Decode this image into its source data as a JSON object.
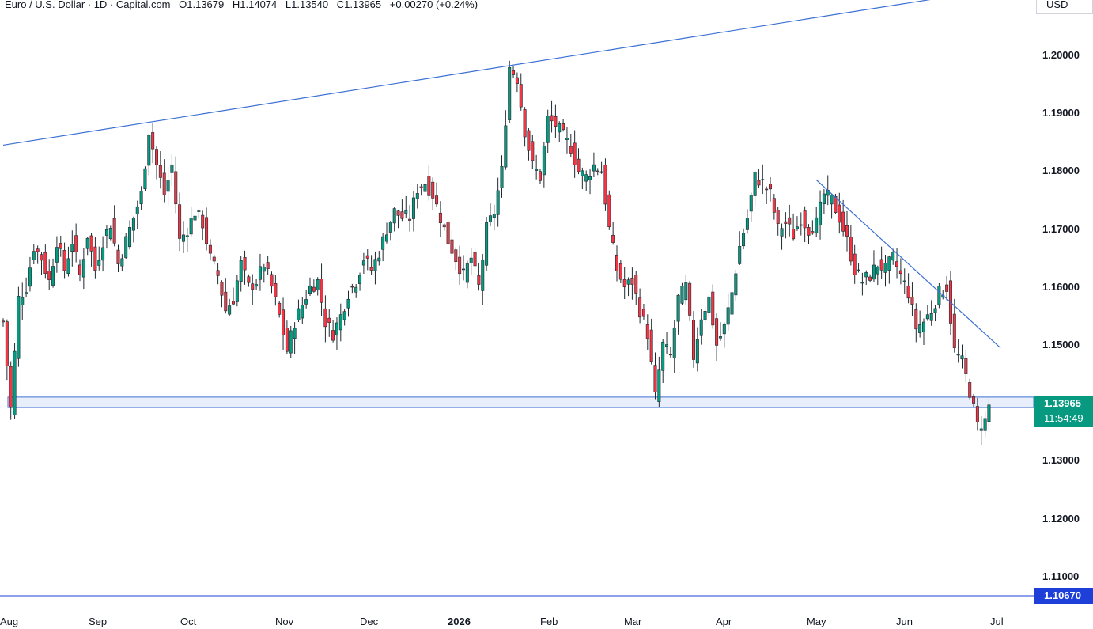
{
  "legend": {
    "symbol": "Euro / U.S. Dollar · 1D · Capital.com",
    "open": "O1.13679",
    "high": "H1.14074",
    "low": "L1.13540",
    "close": "C1.13965",
    "change": "+0.00270 (+0.24%)"
  },
  "currency_label": "USD",
  "last_price_tag": {
    "price": "1.13965",
    "countdown": "11:54:49",
    "color": "#089981"
  },
  "line_price_tag": {
    "price": "1.10670",
    "color": "#1e3fd8"
  },
  "colors": {
    "up": "#089981",
    "down": "#f23645",
    "wick_up": "#0f3b34",
    "trend": "#3b6fd4",
    "zone_fill": "#e8eefb",
    "zone_border": "#3b6fd4",
    "hline": "#1e3fd8"
  },
  "chart_data": {
    "type": "candlestick",
    "y_range": [
      1.0995,
      1.21
    ],
    "price_ticks": [
      "1.20000",
      "1.19000",
      "1.18000",
      "1.17000",
      "1.16000",
      "1.15000",
      "1.13000",
      "1.12000",
      "1.11000"
    ],
    "time_labels": [
      {
        "label": "Aug",
        "bold": false
      },
      {
        "label": "Sep",
        "bold": false
      },
      {
        "label": "Oct",
        "bold": false
      },
      {
        "label": "Nov",
        "bold": false
      },
      {
        "label": "Dec",
        "bold": false
      },
      {
        "label": "2026",
        "bold": true
      },
      {
        "label": "Feb",
        "bold": false
      },
      {
        "label": "Mar",
        "bold": false
      },
      {
        "label": "Apr",
        "bold": false
      },
      {
        "label": "May",
        "bold": false
      },
      {
        "label": "Jun",
        "bold": false
      },
      {
        "label": "Jul",
        "bold": false
      }
    ],
    "anchors": [
      [
        0,
        1.154
      ],
      [
        2,
        1.139
      ],
      [
        4,
        1.158
      ],
      [
        6,
        1.16
      ],
      [
        8,
        1.167
      ],
      [
        10,
        1.165
      ],
      [
        12,
        1.161
      ],
      [
        14,
        1.168
      ],
      [
        16,
        1.163
      ],
      [
        18,
        1.168
      ],
      [
        20,
        1.162
      ],
      [
        22,
        1.169
      ],
      [
        24,
        1.163
      ],
      [
        26,
        1.168
      ],
      [
        28,
        1.171
      ],
      [
        30,
        1.164
      ],
      [
        32,
        1.168
      ],
      [
        34,
        1.172
      ],
      [
        36,
        1.176
      ],
      [
        38,
        1.187
      ],
      [
        40,
        1.181
      ],
      [
        42,
        1.176
      ],
      [
        44,
        1.181
      ],
      [
        46,
        1.168
      ],
      [
        48,
        1.17
      ],
      [
        50,
        1.173
      ],
      [
        52,
        1.171
      ],
      [
        54,
        1.165
      ],
      [
        56,
        1.162
      ],
      [
        58,
        1.156
      ],
      [
        60,
        1.158
      ],
      [
        62,
        1.164
      ],
      [
        64,
        1.16
      ],
      [
        66,
        1.161
      ],
      [
        68,
        1.164
      ],
      [
        70,
        1.16
      ],
      [
        72,
        1.155
      ],
      [
        74,
        1.149
      ],
      [
        76,
        1.154
      ],
      [
        78,
        1.157
      ],
      [
        80,
        1.16
      ],
      [
        82,
        1.161
      ],
      [
        84,
        1.154
      ],
      [
        86,
        1.152
      ],
      [
        88,
        1.155
      ],
      [
        90,
        1.159
      ],
      [
        92,
        1.161
      ],
      [
        94,
        1.165
      ],
      [
        96,
        1.163
      ],
      [
        98,
        1.166
      ],
      [
        100,
        1.17
      ],
      [
        102,
        1.173
      ],
      [
        104,
        1.172
      ],
      [
        106,
        1.172
      ],
      [
        108,
        1.177
      ],
      [
        110,
        1.178
      ],
      [
        112,
        1.176
      ],
      [
        114,
        1.172
      ],
      [
        116,
        1.168
      ],
      [
        118,
        1.165
      ],
      [
        120,
        1.162
      ],
      [
        122,
        1.165
      ],
      [
        124,
        1.16
      ],
      [
        126,
        1.17
      ],
      [
        128,
        1.173
      ],
      [
        130,
        1.18
      ],
      [
        132,
        1.198
      ],
      [
        134,
        1.196
      ],
      [
        136,
        1.187
      ],
      [
        138,
        1.181
      ],
      [
        140,
        1.179
      ],
      [
        142,
        1.189
      ],
      [
        144,
        1.188
      ],
      [
        146,
        1.186
      ],
      [
        148,
        1.184
      ],
      [
        150,
        1.18
      ],
      [
        152,
        1.179
      ],
      [
        154,
        1.181
      ],
      [
        156,
        1.18
      ],
      [
        158,
        1.17
      ],
      [
        160,
        1.163
      ],
      [
        162,
        1.16
      ],
      [
        164,
        1.161
      ],
      [
        166,
        1.156
      ],
      [
        168,
        1.152
      ],
      [
        170,
        1.141
      ],
      [
        172,
        1.15
      ],
      [
        174,
        1.148
      ],
      [
        176,
        1.158
      ],
      [
        178,
        1.16
      ],
      [
        180,
        1.148
      ],
      [
        182,
        1.155
      ],
      [
        184,
        1.158
      ],
      [
        186,
        1.15
      ],
      [
        188,
        1.153
      ],
      [
        190,
        1.159
      ],
      [
        192,
        1.167
      ],
      [
        194,
        1.172
      ],
      [
        196,
        1.179
      ],
      [
        198,
        1.178
      ],
      [
        200,
        1.176
      ],
      [
        202,
        1.17
      ],
      [
        204,
        1.171
      ],
      [
        206,
        1.169
      ],
      [
        208,
        1.172
      ],
      [
        210,
        1.17
      ],
      [
        212,
        1.171
      ],
      [
        214,
        1.176
      ],
      [
        216,
        1.175
      ],
      [
        218,
        1.172
      ],
      [
        220,
        1.168
      ],
      [
        222,
        1.163
      ],
      [
        224,
        1.161
      ],
      [
        226,
        1.162
      ],
      [
        228,
        1.164
      ],
      [
        230,
        1.163
      ],
      [
        232,
        1.165
      ],
      [
        234,
        1.162
      ],
      [
        236,
        1.159
      ],
      [
        238,
        1.153
      ],
      [
        240,
        1.154
      ],
      [
        242,
        1.156
      ],
      [
        244,
        1.159
      ],
      [
        246,
        1.16
      ],
      [
        248,
        1.149
      ],
      [
        250,
        1.147
      ],
      [
        252,
        1.142
      ],
      [
        254,
        1.136
      ],
      [
        256,
        1.1369
      ],
      [
        257,
        1.1397
      ]
    ],
    "last_bar": {
      "open": 1.13679,
      "high": 1.14074,
      "low": 1.1354,
      "close": 1.13965
    },
    "support_zone": {
      "from": 1.1392,
      "to": 1.141
    },
    "upper_trendline": {
      "from": [
        0,
        1.1845
      ],
      "to": [
        250,
        1.2105
      ]
    },
    "down_trendline": {
      "from": [
        212,
        1.1785
      ],
      "to": [
        260,
        1.1495
      ]
    },
    "horizontal_line": 1.1067
  }
}
